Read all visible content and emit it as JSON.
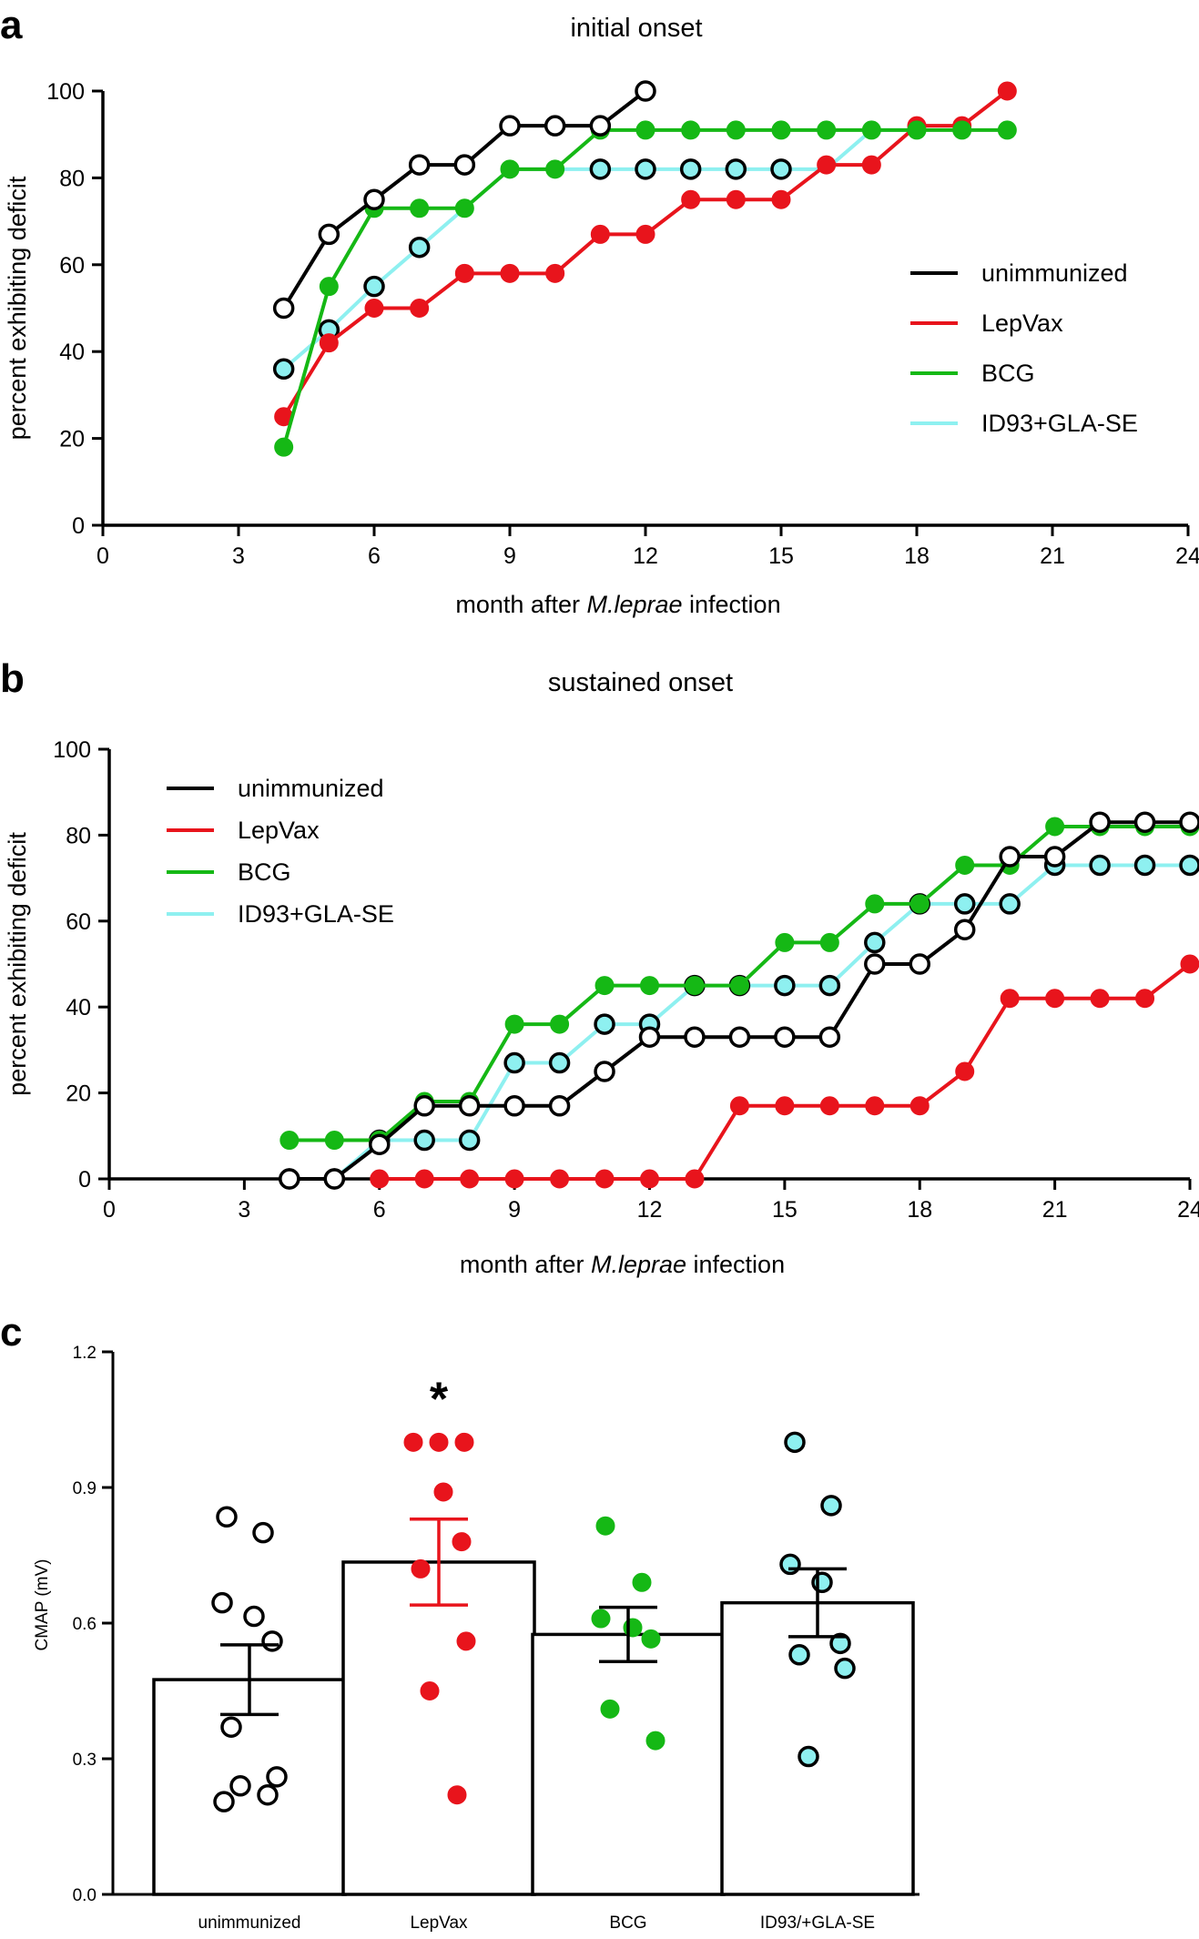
{
  "colors": {
    "unimmunized": "#000000",
    "LepVax": "#e8141c",
    "BCG": "#15b815",
    "ID93+GLA-SE": "#8ef0f0"
  },
  "chart_data": [
    {
      "panel": "a",
      "type": "line",
      "title": "initial onset",
      "xlabel_prefix": "month after ",
      "xlabel_italic": "M.leprae",
      "xlabel_suffix": " infection",
      "ylabel": "percent exhibiting deficit",
      "xlim": [
        0,
        24
      ],
      "ylim": [
        0,
        100
      ],
      "xticks": [
        0,
        3,
        6,
        9,
        12,
        15,
        18,
        21,
        24
      ],
      "yticks": [
        0,
        20,
        40,
        60,
        80,
        100
      ],
      "legend_position": "center-right",
      "series": [
        {
          "name": "unimmunized",
          "marker": "open",
          "x": [
            4,
            5,
            6,
            7,
            8,
            9,
            10,
            11,
            12
          ],
          "y": [
            50,
            67,
            75,
            83,
            83,
            92,
            92,
            92,
            100
          ]
        },
        {
          "name": "LepVax",
          "marker": "filled",
          "x": [
            4,
            5,
            6,
            7,
            8,
            9,
            10,
            11,
            12,
            13,
            14,
            15,
            16,
            17,
            18,
            19,
            20
          ],
          "y": [
            25,
            42,
            50,
            50,
            58,
            58,
            58,
            67,
            67,
            75,
            75,
            75,
            83,
            83,
            92,
            92,
            100
          ]
        },
        {
          "name": "BCG",
          "marker": "filled",
          "x": [
            4,
            5,
            6,
            7,
            8,
            9,
            10,
            11,
            12,
            13,
            14,
            15,
            16,
            17,
            18,
            19,
            20
          ],
          "y": [
            18,
            55,
            73,
            73,
            73,
            82,
            82,
            91,
            91,
            91,
            91,
            91,
            91,
            91,
            91,
            91,
            91
          ]
        },
        {
          "name": "ID93+GLA-SE",
          "marker": "open-cyan",
          "x": [
            4,
            5,
            6,
            7,
            8,
            9,
            10,
            11,
            12,
            13,
            14,
            15,
            16,
            17,
            18
          ],
          "y": [
            36,
            45,
            55,
            64,
            73,
            82,
            82,
            82,
            82,
            82,
            82,
            82,
            82,
            91,
            91
          ],
          "marker_x": [
            4,
            5,
            6,
            7,
            11,
            12,
            13,
            14,
            15
          ]
        }
      ]
    },
    {
      "panel": "b",
      "type": "line",
      "title": "sustained onset",
      "xlabel_prefix": "month after ",
      "xlabel_italic": "M.leprae",
      "xlabel_suffix": " infection",
      "ylabel": "percent exhibiting deficit",
      "xlim": [
        0,
        24
      ],
      "ylim": [
        0,
        100
      ],
      "xticks": [
        0,
        3,
        6,
        9,
        12,
        15,
        18,
        21,
        24
      ],
      "yticks": [
        0,
        20,
        40,
        60,
        80,
        100
      ],
      "legend_position": "top-left",
      "series": [
        {
          "name": "unimmunized",
          "marker": "open",
          "x": [
            4,
            5,
            6,
            7,
            8,
            9,
            10,
            11,
            12,
            13,
            14,
            15,
            16,
            17,
            18,
            19,
            20,
            21,
            22,
            23,
            24
          ],
          "y": [
            0,
            0,
            8,
            17,
            17,
            17,
            17,
            25,
            33,
            33,
            33,
            33,
            33,
            50,
            50,
            58,
            75,
            75,
            83,
            83,
            83
          ]
        },
        {
          "name": "LepVax",
          "marker": "filled",
          "x": [
            6,
            7,
            8,
            9,
            10,
            11,
            12,
            13,
            14,
            15,
            16,
            17,
            18,
            19,
            20,
            21,
            22,
            23,
            24
          ],
          "y": [
            0,
            0,
            0,
            0,
            0,
            0,
            0,
            0,
            17,
            17,
            17,
            17,
            17,
            25,
            42,
            42,
            42,
            42,
            50
          ]
        },
        {
          "name": "BCG",
          "marker": "filled",
          "x": [
            4,
            5,
            6,
            7,
            8,
            9,
            10,
            11,
            12,
            13,
            14,
            15,
            16,
            17,
            18,
            19,
            20,
            21,
            22,
            23,
            24
          ],
          "y": [
            9,
            9,
            9,
            18,
            18,
            36,
            36,
            45,
            45,
            45,
            45,
            55,
            55,
            64,
            64,
            73,
            73,
            82,
            82,
            82,
            82
          ]
        },
        {
          "name": "ID93+GLA-SE",
          "marker": "open-cyan",
          "x": [
            4,
            5,
            6,
            7,
            8,
            9,
            10,
            11,
            12,
            13,
            14,
            15,
            16,
            17,
            18,
            19,
            20,
            21,
            22,
            23,
            24
          ],
          "y": [
            0,
            0,
            9,
            9,
            9,
            27,
            27,
            36,
            36,
            45,
            45,
            45,
            45,
            55,
            64,
            64,
            64,
            73,
            73,
            73,
            73
          ]
        }
      ]
    },
    {
      "panel": "c",
      "type": "bar",
      "ylabel": "CMAP (mV)",
      "ylim": [
        0,
        1.2
      ],
      "yticks": [
        "0.0",
        "0.3",
        "0.6",
        "0.9",
        "1.2"
      ],
      "categories": [
        "unimmunized",
        "LepVax",
        "BCG",
        "ID93/+GLA-SE"
      ],
      "values": [
        0.475,
        0.735,
        0.575,
        0.645
      ],
      "sem": [
        0.077,
        0.095,
        0.06,
        0.075
      ],
      "points": [
        [
          0.835,
          0.8,
          0.645,
          0.615,
          0.56,
          0.37,
          0.26,
          0.24,
          0.22,
          0.205
        ],
        [
          1.0,
          1.0,
          1.0,
          0.89,
          0.78,
          0.72,
          0.56,
          0.45,
          0.22
        ],
        [
          0.815,
          0.69,
          0.61,
          0.59,
          0.565,
          0.41,
          0.34
        ],
        [
          1.0,
          0.86,
          0.73,
          0.69,
          0.555,
          0.53,
          0.5,
          0.305
        ]
      ],
      "point_style": [
        "open",
        "filled",
        "filled",
        "open-cyan"
      ],
      "annotation": "*",
      "annotation_category": "LepVax"
    }
  ]
}
